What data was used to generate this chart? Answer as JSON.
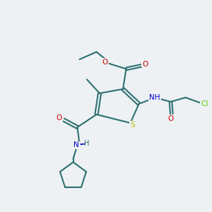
{
  "background_color": "#edf1f3",
  "atom_colors": {
    "C": "#2d7070",
    "O": "#cc0000",
    "N": "#0000cc",
    "S": "#bbbb00",
    "Cl": "#55cc00",
    "H": "#2d7070"
  },
  "bond_color": "#2d7070",
  "bond_width": 1.5,
  "figsize": [
    3.0,
    3.0
  ],
  "dpi": 100
}
